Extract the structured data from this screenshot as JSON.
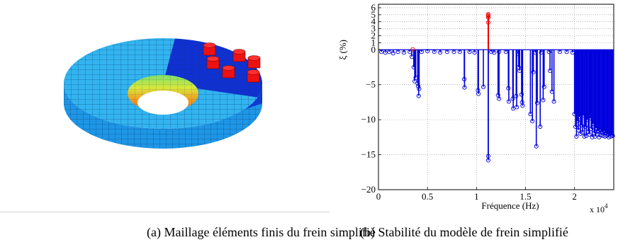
{
  "captions": {
    "a": "(a) Maillage éléments finis du frein simplifié",
    "b": "(b) Stabilité du modèle de frein simplifié"
  },
  "colors": {
    "stable": "#0000dd",
    "unstable": "#ee0000",
    "disc": "#22a8ee",
    "pad_zone": "#1030d0",
    "pads": "#ee1111"
  },
  "chart_data": {
    "type": "scatter",
    "title": "",
    "xlabel": "Fréquence (Hz)",
    "ylabel": "ξ (%)",
    "x_multiplier": "x 10",
    "x_multiplier_exp": "4",
    "xlim": [
      0,
      24000
    ],
    "ylim": [
      -20,
      6.5
    ],
    "x_ticks": [
      0,
      5000,
      10000,
      15000,
      20000
    ],
    "x_tick_labels": [
      "0",
      "0.5",
      "1",
      "1.5",
      "2"
    ],
    "y_ticks": [
      -20,
      -15,
      -10,
      -5,
      0,
      1,
      2,
      3,
      4,
      5,
      6
    ],
    "y_tick_labels": [
      "−20",
      "−15",
      "−10",
      "−5",
      "0",
      "1",
      "2",
      "3",
      "4",
      "5",
      "6"
    ],
    "grid": true,
    "series": [
      {
        "role": "stable",
        "values": [
          [
            300,
            -0.3
          ],
          [
            700,
            -0.4
          ],
          [
            1100,
            -0.3
          ],
          [
            1500,
            -0.5
          ],
          [
            2000,
            -0.3
          ],
          [
            2600,
            -0.4
          ],
          [
            3200,
            -0.3
          ],
          [
            3400,
            -1.0
          ],
          [
            3600,
            -2.5
          ],
          [
            3700,
            -4.5
          ],
          [
            3800,
            -4.0
          ],
          [
            4000,
            -4.8
          ],
          [
            4050,
            -5.2
          ],
          [
            4100,
            -6.6
          ],
          [
            4150,
            -5.6
          ],
          [
            4400,
            -0.3
          ],
          [
            5000,
            -0.2
          ],
          [
            5700,
            -0.3
          ],
          [
            6300,
            -0.4
          ],
          [
            7000,
            -0.3
          ],
          [
            7700,
            -0.3
          ],
          [
            8300,
            -0.3
          ],
          [
            8750,
            -4.2
          ],
          [
            8780,
            -5.4
          ],
          [
            9300,
            -0.3
          ],
          [
            9800,
            -0.4
          ],
          [
            10150,
            -5.8
          ],
          [
            10200,
            -6.3
          ],
          [
            10700,
            -5.3
          ],
          [
            11200,
            -15.2
          ],
          [
            11200,
            -15.8
          ],
          [
            11500,
            -0.3
          ],
          [
            11800,
            -0.4
          ],
          [
            12300,
            -0.3
          ],
          [
            12200,
            -6.5
          ],
          [
            12300,
            -7.0
          ],
          [
            13000,
            -0.3
          ],
          [
            13250,
            -5.5
          ],
          [
            13300,
            -7.4
          ],
          [
            13700,
            -7.0
          ],
          [
            13750,
            -8.4
          ],
          [
            14050,
            -6.6
          ],
          [
            14100,
            -8.2
          ],
          [
            14250,
            -0.6
          ],
          [
            14300,
            -2.5
          ],
          [
            14400,
            -3.0
          ],
          [
            14600,
            -6.4
          ],
          [
            14650,
            -7.5
          ],
          [
            14700,
            -8.0
          ],
          [
            15500,
            -9.2
          ],
          [
            15700,
            -10.2
          ],
          [
            15800,
            -3.2
          ],
          [
            16000,
            -0.4
          ],
          [
            16100,
            -13.8
          ],
          [
            16200,
            -7.6
          ],
          [
            16500,
            -11.0
          ],
          [
            16600,
            -0.4
          ],
          [
            16800,
            -7.2
          ],
          [
            16900,
            -5.3
          ],
          [
            17400,
            -0.3
          ],
          [
            17500,
            -3.0
          ],
          [
            17700,
            -6.0
          ],
          [
            17900,
            -7.4
          ],
          [
            18500,
            -0.3
          ],
          [
            19200,
            -0.3
          ],
          [
            19800,
            -0.4
          ],
          [
            20000,
            -9.2
          ],
          [
            20100,
            -11.0
          ],
          [
            20200,
            -12.4
          ],
          [
            20300,
            -10.2
          ],
          [
            20400,
            -11.5
          ],
          [
            20500,
            -9.6
          ],
          [
            20600,
            -12.0
          ],
          [
            20700,
            -10.8
          ],
          [
            20800,
            -11.8
          ],
          [
            20900,
            -9.4
          ],
          [
            21000,
            -12.4
          ],
          [
            21100,
            -11.0
          ],
          [
            21200,
            -12.3
          ],
          [
            21300,
            -10.0
          ],
          [
            21400,
            -11.7
          ],
          [
            21500,
            -12.1
          ],
          [
            21600,
            -9.8
          ],
          [
            21700,
            -11.3
          ],
          [
            21800,
            -12.5
          ],
          [
            21900,
            -10.6
          ],
          [
            22000,
            -11.9
          ],
          [
            22100,
            -12.4
          ],
          [
            22200,
            -11.2
          ],
          [
            22300,
            -12.1
          ],
          [
            22400,
            -11.6
          ],
          [
            22500,
            -12.5
          ],
          [
            22600,
            -11.4
          ],
          [
            22700,
            -12.2
          ],
          [
            22800,
            -11.8
          ],
          [
            22900,
            -12.3
          ],
          [
            23000,
            -11.6
          ],
          [
            23100,
            -12.4
          ],
          [
            23200,
            -11.9
          ],
          [
            23300,
            -12.3
          ],
          [
            23400,
            -12.1
          ],
          [
            23500,
            -12.5
          ],
          [
            23600,
            -12.0
          ],
          [
            23700,
            -12.4
          ],
          [
            23800,
            -12.2
          ],
          [
            23900,
            -12.3
          ]
        ]
      },
      {
        "role": "unstable",
        "values": [
          [
            3500,
            0.05
          ],
          [
            11200,
            3.9
          ],
          [
            11200,
            4.6
          ],
          [
            11200,
            4.8
          ],
          [
            11200,
            4.95
          ],
          [
            11200,
            5.05
          ]
        ]
      }
    ]
  }
}
